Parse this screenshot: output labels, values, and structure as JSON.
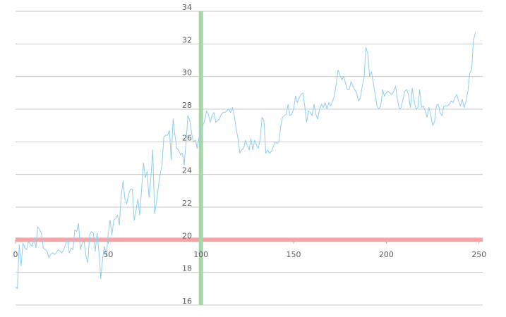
{
  "chart_data": {
    "type": "line",
    "title": "",
    "xlabel": "",
    "ylabel": "",
    "xlim": [
      0,
      252
    ],
    "ylim": [
      16,
      34
    ],
    "x_ticks": [
      0,
      50,
      100,
      150,
      200,
      250
    ],
    "y_ticks": [
      16,
      18,
      20,
      22,
      24,
      26,
      28,
      30,
      32,
      34
    ],
    "grid": "horizontal",
    "series_color": "#8fcdef",
    "series": [
      {
        "x_start": 0,
        "x_step": 1,
        "values": [
          17.1,
          17.0,
          19.7,
          18.4,
          19.8,
          19.5,
          19.4,
          19.9,
          19.7,
          19.6,
          20.1,
          19.5,
          20.8,
          20.6,
          20.4,
          19.5,
          19.4,
          19.3,
          18.9,
          19.1,
          19.2,
          19.1,
          19.2,
          19.4,
          19.3,
          19.2,
          19.4,
          19.7,
          20.1,
          19.2,
          19.5,
          19.4,
          20.6,
          20.5,
          21.0,
          19.4,
          19.8,
          19.9,
          19.0,
          18.6,
          20.3,
          20.5,
          20.4,
          19.3,
          20.4,
          19.2,
          17.6,
          18.9,
          19.6,
          19.0,
          20.4,
          21.2,
          20.3,
          21.2,
          21.3,
          21.5,
          20.9,
          22.7,
          23.6,
          22.5,
          22.2,
          22.8,
          23.1,
          23.1,
          21.2,
          21.8,
          22.5,
          21.5,
          23.1,
          24.7,
          23.8,
          24.2,
          22.6,
          23.8,
          25.5,
          21.6,
          22.3,
          23.2,
          24.0,
          24.6,
          26.3,
          26.4,
          26.4,
          26.7,
          24.9,
          27.4,
          26.4,
          25.6,
          25.5,
          25.2,
          25.3,
          24.6,
          26.0,
          27.6,
          27.3,
          26.5,
          26.0,
          26.1,
          25.6,
          26.3,
          26.8,
          27.0,
          27.3,
          27.9,
          27.7,
          27.2,
          27.6,
          27.8,
          27.2,
          27.3,
          27.4,
          27.7,
          27.8,
          27.8,
          27.9,
          28.0,
          27.8,
          28.1,
          27.6,
          26.8,
          26.2,
          25.3,
          25.5,
          25.6,
          26.1,
          25.8,
          25.5,
          26.2,
          25.5,
          26.1,
          25.8,
          25.6,
          26.2,
          27.5,
          27.3,
          25.3,
          25.5,
          25.3,
          25.4,
          25.7,
          26.0,
          25.9,
          26.0,
          26.9,
          27.5,
          27.6,
          27.7,
          28.3,
          27.6,
          27.7,
          28.0,
          28.8,
          28.4,
          28.7,
          28.9,
          29.0,
          28.2,
          27.2,
          27.9,
          27.8,
          27.6,
          28.3,
          27.7,
          27.4,
          28.0,
          28.3,
          28.1,
          28.4,
          28.0,
          28.4,
          28.2,
          28.5,
          28.8,
          29.6,
          30.4,
          30.1,
          29.8,
          30.0,
          29.6,
          29.2,
          29.2,
          29.7,
          29.4,
          29.2,
          29.0,
          28.5,
          28.7,
          29.4,
          29.9,
          31.8,
          31.4,
          30.0,
          30.3,
          29.6,
          28.9,
          28.2,
          28.0,
          28.2,
          29.2,
          28.8,
          29.0,
          29.1,
          29.0,
          28.9,
          29.1,
          29.4,
          28.6,
          28.0,
          28.1,
          28.6,
          29.1,
          29.2,
          28.9,
          28.1,
          29.3,
          28.5,
          28.0,
          28.1,
          29.2,
          28.1,
          28.2,
          27.9,
          27.5,
          28.1,
          27.6,
          27.0,
          27.2,
          28.2,
          28.3,
          27.8,
          27.6,
          28.2,
          28.2,
          28.2,
          28.3,
          28.5,
          28.4,
          28.7,
          28.9,
          28.5,
          28.2,
          28.6,
          28.1,
          28.5,
          29.1,
          30.2,
          30.4,
          32.2,
          32.7
        ]
      }
    ],
    "reference_lines": [
      {
        "orientation": "horizontal",
        "value": 20,
        "color": "#f4a3a6"
      },
      {
        "orientation": "vertical",
        "value": 100,
        "color": "#a5d6a7"
      }
    ]
  }
}
